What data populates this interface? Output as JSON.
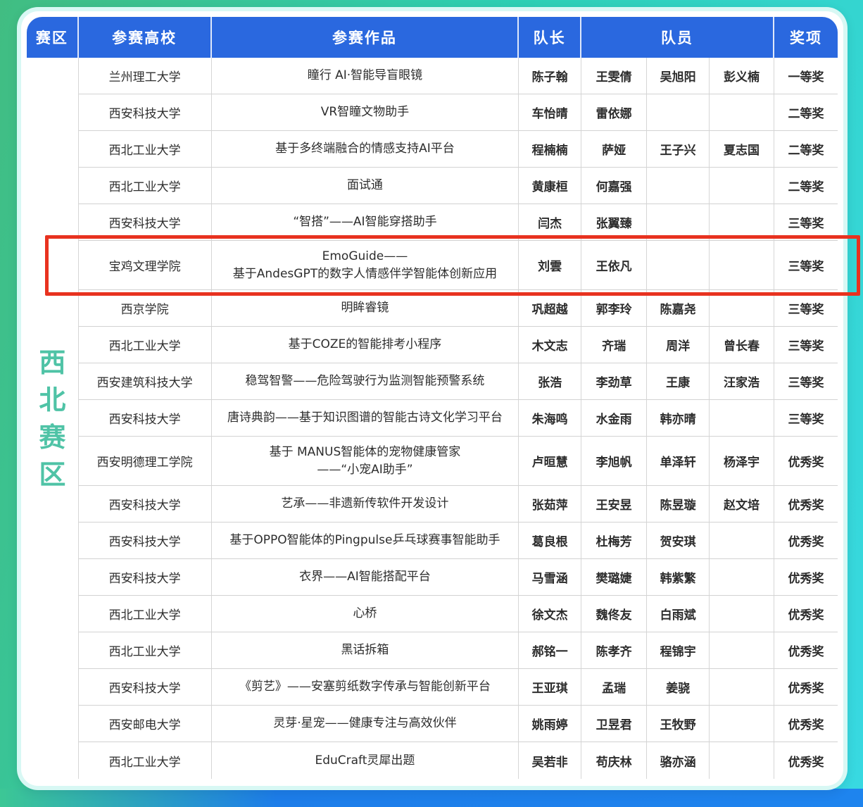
{
  "zone": {
    "label": "西北赛区"
  },
  "table": {
    "headers": {
      "zone": "赛区",
      "school": "参赛高校",
      "work": "参赛作品",
      "captain": "队长",
      "members": "队员",
      "award": "奖项"
    },
    "rows": [
      {
        "school": "兰州理工大学",
        "work": [
          "瞳行 AI·智能导盲眼镜"
        ],
        "captain": "陈子翰",
        "members": [
          "王雯倩",
          "吴旭阳",
          "彭义楠"
        ],
        "award": "一等奖",
        "highlighted": false
      },
      {
        "school": "西安科技大学",
        "work": [
          "VR智瞳文物助手"
        ],
        "captain": "车怡晴",
        "members": [
          "雷依娜",
          "",
          ""
        ],
        "award": "二等奖",
        "highlighted": false
      },
      {
        "school": "西北工业大学",
        "work": [
          "基于多终端融合的情感支持AI平台"
        ],
        "captain": "程楠楠",
        "members": [
          "萨娅",
          "王子兴",
          "夏志国"
        ],
        "award": "二等奖",
        "highlighted": false
      },
      {
        "school": "西北工业大学",
        "work": [
          "面试通"
        ],
        "captain": "黄康桓",
        "members": [
          "何嘉强",
          "",
          ""
        ],
        "award": "二等奖",
        "highlighted": false
      },
      {
        "school": "西安科技大学",
        "work": [
          "“智搭”——AI智能穿搭助手"
        ],
        "captain": "闫杰",
        "members": [
          "张翼臻",
          "",
          ""
        ],
        "award": "三等奖",
        "highlighted": false
      },
      {
        "school": "宝鸡文理学院",
        "work": [
          "EmoGuide——",
          "基于AndesGPT的数字人情感伴学智能体创新应用"
        ],
        "captain": "刘雲",
        "members": [
          "王依凡",
          "",
          ""
        ],
        "award": "三等奖",
        "highlighted": true
      },
      {
        "school": "西京学院",
        "work": [
          "明眸睿镜"
        ],
        "captain": "巩超越",
        "members": [
          "郭李玲",
          "陈嘉尧",
          ""
        ],
        "award": "三等奖",
        "highlighted": false
      },
      {
        "school": "西北工业大学",
        "work": [
          "基于COZE的智能排考小程序"
        ],
        "captain": "木文志",
        "members": [
          "齐瑞",
          "周洋",
          "曾长春"
        ],
        "award": "三等奖",
        "highlighted": false
      },
      {
        "school": "西安建筑科技大学",
        "work": [
          "稳驾智警——危险驾驶行为监测智能预警系统"
        ],
        "captain": "张浩",
        "members": [
          "李劲草",
          "王康",
          "汪家浩"
        ],
        "award": "三等奖",
        "highlighted": false
      },
      {
        "school": "西安科技大学",
        "work": [
          "唐诗典韵——基于知识图谱的智能古诗文化学习平台"
        ],
        "captain": "朱海鸣",
        "members": [
          "水金雨",
          "韩亦晴",
          ""
        ],
        "award": "三等奖",
        "highlighted": false
      },
      {
        "school": "西安明德理工学院",
        "work": [
          "基于 MANUS智能体的宠物健康管家",
          "——“小宠AI助手”"
        ],
        "captain": "卢晅慧",
        "members": [
          "李旭帆",
          "单泽轩",
          "杨泽宇"
        ],
        "award": "优秀奖",
        "highlighted": false
      },
      {
        "school": "西安科技大学",
        "work": [
          "艺承——非遗新传软件开发设计"
        ],
        "captain": "张茹萍",
        "members": [
          "王安昱",
          "陈昱璇",
          "赵文培"
        ],
        "award": "优秀奖",
        "highlighted": false
      },
      {
        "school": "西安科技大学",
        "work": [
          "基于OPPO智能体的Pingpulse乒乓球赛事智能助手"
        ],
        "captain": "葛良根",
        "members": [
          "杜梅芳",
          "贺安琪",
          ""
        ],
        "award": "优秀奖",
        "highlighted": false
      },
      {
        "school": "西安科技大学",
        "work": [
          "衣界——AI智能搭配平台"
        ],
        "captain": "马雪涵",
        "members": [
          "樊璐婕",
          "韩紫繁",
          ""
        ],
        "award": "优秀奖",
        "highlighted": false
      },
      {
        "school": "西北工业大学",
        "work": [
          "心桥"
        ],
        "captain": "徐文杰",
        "members": [
          "魏佟友",
          "白雨斌",
          ""
        ],
        "award": "优秀奖",
        "highlighted": false
      },
      {
        "school": "西北工业大学",
        "work": [
          "黑话拆箱"
        ],
        "captain": "郝铭一",
        "members": [
          "陈孝齐",
          "程锦宇",
          ""
        ],
        "award": "优秀奖",
        "highlighted": false
      },
      {
        "school": "西安科技大学",
        "work": [
          "《剪艺》——安塞剪纸数字传承与智能创新平台"
        ],
        "captain": "王亚琪",
        "members": [
          "孟瑞",
          "姜骁",
          ""
        ],
        "award": "优秀奖",
        "highlighted": false
      },
      {
        "school": "西安邮电大学",
        "work": [
          "灵芽·星宠——健康专注与高效伙伴"
        ],
        "captain": "姚雨婷",
        "members": [
          "卫昱君",
          "王牧野",
          ""
        ],
        "award": "优秀奖",
        "highlighted": false
      },
      {
        "school": "西北工业大学",
        "work": [
          "EduCraft灵犀出题"
        ],
        "captain": "吴若非",
        "members": [
          "苟庆林",
          "骆亦涵",
          ""
        ],
        "award": "优秀奖",
        "highlighted": false
      }
    ]
  },
  "colors": {
    "header_bg": "#2a68df",
    "zone_text": "#4fc3a6",
    "highlight_border": "#e8321f",
    "bottom_bar_blue": "#1d7de9",
    "background_green": "#41bd82",
    "background_cyan": "#38d9e2"
  }
}
